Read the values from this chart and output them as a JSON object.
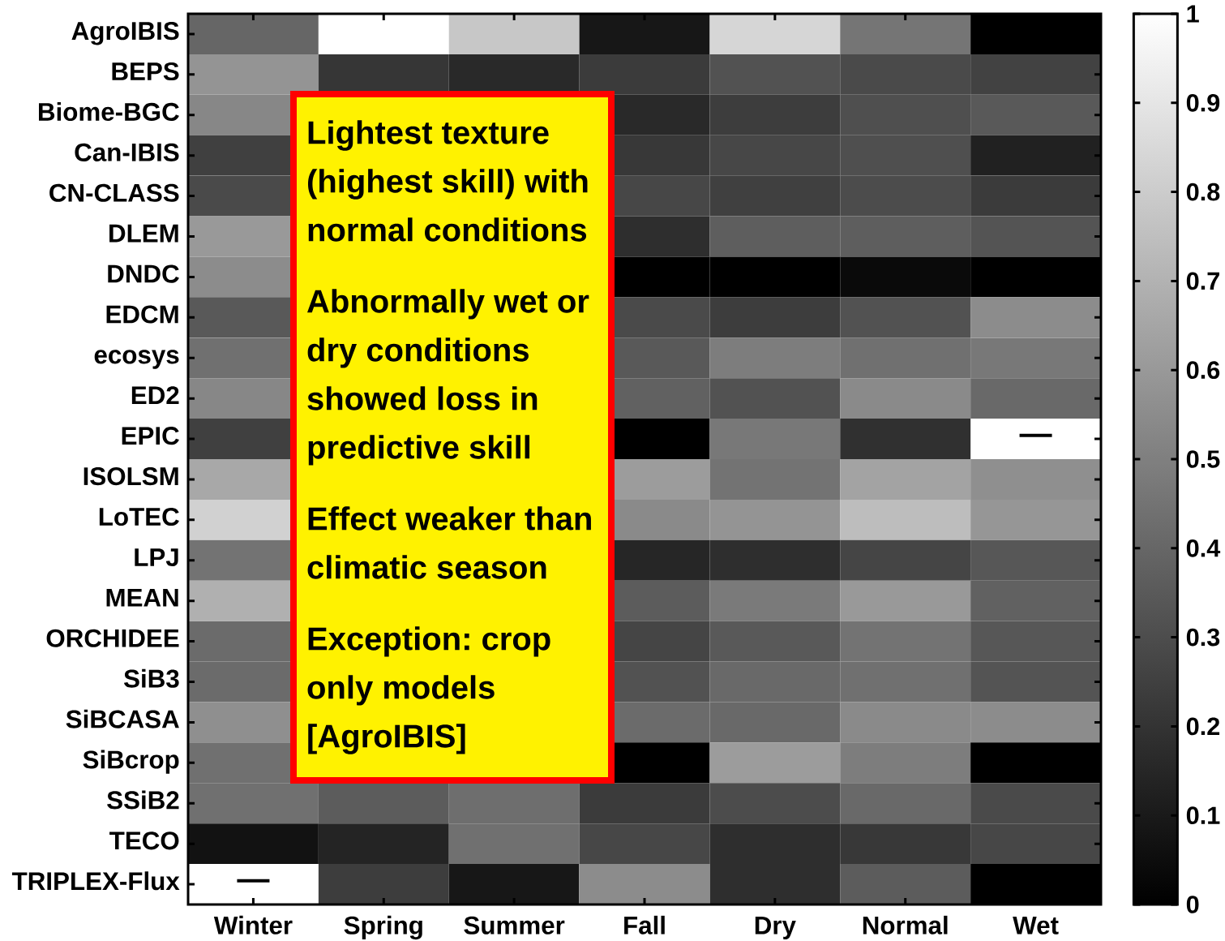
{
  "chart_data": {
    "type": "heatmap",
    "categories": [
      "Winter",
      "Spring",
      "Summer",
      "Fall",
      "Dry",
      "Normal",
      "Wet"
    ],
    "y_categories": [
      "AgroIBIS",
      "BEPS",
      "Biome-BGC",
      "Can-IBIS",
      "CN-CLASS",
      "DLEM",
      "DNDC",
      "EDCM",
      "ecosys",
      "ED2",
      "EPIC",
      "ISOLSM",
      "LoTEC",
      "LPJ",
      "MEAN",
      "ORCHIDEE",
      "SiB3",
      "SiBCASA",
      "SiBcrop",
      "SSiB2",
      "TECO",
      "TRIPLEX-Flux"
    ],
    "cells": [
      [
        0.4,
        1,
        0.78,
        0.09,
        0.84,
        0.46,
        0
      ],
      [
        0.58,
        0.21,
        0.16,
        0.23,
        0.32,
        0.29,
        0.26
      ],
      [
        0.53,
        null,
        null,
        0.16,
        0.24,
        0.31,
        0.35
      ],
      [
        0.25,
        null,
        null,
        0.22,
        0.28,
        0.31,
        0.13
      ],
      [
        0.29,
        null,
        null,
        0.28,
        0.25,
        0.3,
        0.23
      ],
      [
        0.6,
        null,
        null,
        0.18,
        0.37,
        0.37,
        0.33
      ],
      [
        0.55,
        null,
        null,
        0,
        0,
        0.04,
        0
      ],
      [
        0.35,
        null,
        null,
        0.29,
        0.24,
        0.32,
        0.55
      ],
      [
        0.44,
        null,
        null,
        0.35,
        0.49,
        0.44,
        0.47
      ],
      [
        0.53,
        null,
        null,
        0.38,
        0.32,
        0.54,
        0.41
      ],
      [
        0.25,
        null,
        null,
        0,
        0.47,
        0.19,
        null
      ],
      [
        0.66,
        null,
        null,
        0.61,
        0.45,
        0.64,
        0.56
      ],
      [
        0.82,
        null,
        null,
        0.54,
        0.58,
        0.74,
        0.59
      ],
      [
        0.45,
        null,
        null,
        0.15,
        0.18,
        0.27,
        0.34
      ],
      [
        0.69,
        null,
        null,
        0.36,
        0.48,
        0.6,
        0.38
      ],
      [
        0.42,
        null,
        null,
        0.27,
        0.35,
        0.45,
        0.34
      ],
      [
        0.42,
        null,
        null,
        0.32,
        0.41,
        0.44,
        0.33
      ],
      [
        0.56,
        null,
        null,
        0.42,
        0.41,
        0.54,
        0.55
      ],
      [
        0.44,
        null,
        null,
        0,
        0.61,
        0.49,
        0
      ],
      [
        0.44,
        0.36,
        0.43,
        0.23,
        0.3,
        0.41,
        0.29
      ],
      [
        0.07,
        0.14,
        0.44,
        0.28,
        0.18,
        0.22,
        0.28
      ],
      [
        null,
        0.24,
        0.09,
        0.55,
        0.18,
        0.36,
        0
      ]
    ],
    "cell_labels": [
      [
        null,
        null,
        null,
        null,
        null,
        null,
        null
      ],
      [
        null,
        null,
        null,
        null,
        null,
        null,
        null
      ],
      [
        null,
        null,
        null,
        null,
        null,
        null,
        null
      ],
      [
        null,
        null,
        null,
        null,
        null,
        null,
        null
      ],
      [
        null,
        null,
        null,
        null,
        null,
        null,
        null
      ],
      [
        null,
        null,
        null,
        null,
        null,
        null,
        null
      ],
      [
        null,
        null,
        null,
        null,
        null,
        null,
        null
      ],
      [
        null,
        null,
        null,
        null,
        null,
        null,
        null
      ],
      [
        null,
        null,
        null,
        null,
        null,
        null,
        null
      ],
      [
        null,
        null,
        null,
        null,
        null,
        null,
        null
      ],
      [
        null,
        null,
        null,
        null,
        null,
        null,
        "—"
      ],
      [
        null,
        null,
        null,
        null,
        null,
        null,
        null
      ],
      [
        null,
        null,
        null,
        null,
        null,
        null,
        null
      ],
      [
        null,
        null,
        null,
        null,
        null,
        null,
        null
      ],
      [
        null,
        null,
        null,
        null,
        null,
        null,
        null
      ],
      [
        null,
        null,
        null,
        null,
        null,
        null,
        null
      ],
      [
        null,
        null,
        null,
        null,
        null,
        null,
        null
      ],
      [
        null,
        null,
        null,
        null,
        null,
        null,
        null
      ],
      [
        null,
        null,
        null,
        null,
        null,
        null,
        null
      ],
      [
        null,
        null,
        null,
        null,
        null,
        null,
        null
      ],
      [
        null,
        null,
        null,
        null,
        null,
        null,
        null
      ],
      [
        "—",
        null,
        null,
        null,
        null,
        null,
        null
      ]
    ],
    "clim": [
      0,
      1
    ],
    "cticks": [
      0,
      0.1,
      0.2,
      0.3,
      0.4,
      0.5,
      0.6,
      0.7,
      0.8,
      0.9,
      1
    ],
    "annotations": [
      "Lightest texture (highest skill) with normal conditions",
      "Abnormally wet or dry conditions showed loss in predictive skill",
      "Effect weaker than climatic season",
      "Exception: crop only models [AgroIBIS]"
    ]
  }
}
